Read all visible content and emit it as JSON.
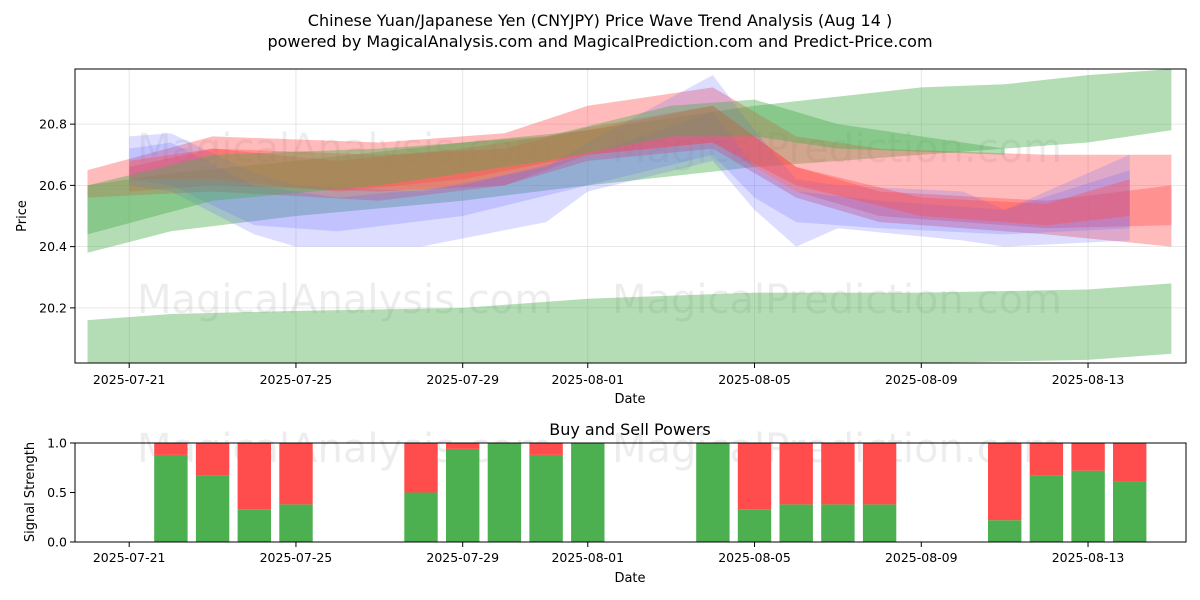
{
  "title_line1": "Chinese Yuan/Japanese Yen (CNYJPY) Price Wave Trend Analysis (Aug 14 )",
  "title_line2": "powered by MagicalAnalysis.com and MagicalPrediction.com and Predict-Price.com",
  "watermarks": [
    "MagicalAnalysis.com",
    "MagicalPrediction.com"
  ],
  "colors": {
    "green": "#4caf50",
    "red": "#ff4c4c",
    "blue": "#6666ff",
    "grid": "#e0e0e0"
  },
  "chart_data": [
    {
      "type": "area",
      "title": "",
      "xlabel": "Date",
      "ylabel": "Price",
      "x_ticks": [
        "2025-07-21",
        "2025-07-25",
        "2025-07-29",
        "2025-08-01",
        "2025-08-05",
        "2025-08-09",
        "2025-08-13"
      ],
      "y_ticks": [
        "20.2",
        "20.4",
        "20.6",
        "20.8"
      ],
      "xlim": [
        "2025-07-20",
        "2025-08-15"
      ],
      "ylim": [
        20.02,
        20.98
      ],
      "grid": true,
      "bands": [
        {
          "color": "green",
          "x": [
            "2025-07-20",
            "2025-07-22",
            "2025-07-25",
            "2025-07-29",
            "2025-08-01",
            "2025-08-05",
            "2025-08-09",
            "2025-08-13",
            "2025-08-15"
          ],
          "upper": [
            20.16,
            20.18,
            20.19,
            20.2,
            20.23,
            20.25,
            20.25,
            20.26,
            20.28
          ],
          "lower": [
            20.0,
            20.0,
            20.0,
            20.0,
            20.0,
            20.01,
            20.02,
            20.03,
            20.05
          ]
        },
        {
          "color": "green",
          "x": [
            "2025-07-20",
            "2025-07-22",
            "2025-07-25",
            "2025-07-29",
            "2025-08-01",
            "2025-08-05",
            "2025-08-09",
            "2025-08-11",
            "2025-08-13",
            "2025-08-15"
          ],
          "upper": [
            20.6,
            20.64,
            20.68,
            20.74,
            20.78,
            20.86,
            20.92,
            20.93,
            20.96,
            20.99
          ],
          "lower": [
            20.38,
            20.45,
            20.5,
            20.55,
            20.6,
            20.66,
            20.7,
            20.72,
            20.74,
            20.78
          ]
        },
        {
          "color": "red",
          "x": [
            "2025-07-20",
            "2025-07-23",
            "2025-07-27",
            "2025-07-30",
            "2025-08-01",
            "2025-08-04",
            "2025-08-06",
            "2025-08-08",
            "2025-08-12",
            "2025-08-15"
          ],
          "upper": [
            20.65,
            20.76,
            20.74,
            20.77,
            20.86,
            20.92,
            20.76,
            20.72,
            20.7,
            20.7
          ],
          "lower": [
            20.56,
            20.58,
            20.55,
            20.6,
            20.7,
            20.74,
            20.58,
            20.5,
            20.46,
            20.47
          ]
        },
        {
          "color": "red",
          "x": [
            "2025-07-21",
            "2025-07-23",
            "2025-07-27",
            "2025-07-30",
            "2025-08-01",
            "2025-08-04",
            "2025-08-06",
            "2025-08-08",
            "2025-08-12",
            "2025-08-15"
          ],
          "upper": [
            20.66,
            20.72,
            20.7,
            20.72,
            20.79,
            20.86,
            20.66,
            20.58,
            20.55,
            20.6
          ],
          "lower": [
            20.58,
            20.6,
            20.58,
            20.6,
            20.68,
            20.72,
            20.56,
            20.48,
            20.44,
            20.4
          ]
        },
        {
          "color": "blue",
          "x": [
            "2025-07-21",
            "2025-07-22",
            "2025-07-24",
            "2025-07-25",
            "2025-07-28",
            "2025-07-31",
            "2025-08-01",
            "2025-08-04",
            "2025-08-05",
            "2025-08-06",
            "2025-08-07",
            "2025-08-10",
            "2025-08-11",
            "2025-08-14"
          ],
          "upper": [
            20.76,
            20.77,
            20.64,
            20.6,
            20.58,
            20.66,
            20.74,
            20.96,
            20.78,
            20.62,
            20.6,
            20.58,
            20.52,
            20.7
          ],
          "lower": [
            20.6,
            20.58,
            20.44,
            20.4,
            20.4,
            20.48,
            20.58,
            20.68,
            20.52,
            20.4,
            20.46,
            20.42,
            20.4,
            20.42
          ]
        },
        {
          "color": "blue",
          "x": [
            "2025-07-21",
            "2025-07-22",
            "2025-07-24",
            "2025-07-26",
            "2025-07-29",
            "2025-08-01",
            "2025-08-04",
            "2025-08-05",
            "2025-08-06",
            "2025-08-08",
            "2025-08-11",
            "2025-08-14"
          ],
          "upper": [
            20.72,
            20.74,
            20.6,
            20.56,
            20.6,
            20.7,
            20.84,
            20.66,
            20.58,
            20.55,
            20.52,
            20.65
          ],
          "lower": [
            20.62,
            20.6,
            20.47,
            20.45,
            20.5,
            20.6,
            20.7,
            20.56,
            20.48,
            20.46,
            20.44,
            20.46
          ]
        },
        {
          "color": "red",
          "x": [
            "2025-07-21",
            "2025-07-23",
            "2025-07-26",
            "2025-07-29",
            "2025-08-01",
            "2025-08-04",
            "2025-08-06",
            "2025-08-09",
            "2025-08-12",
            "2025-08-14"
          ],
          "upper": [
            20.68,
            20.72,
            20.68,
            20.72,
            20.78,
            20.86,
            20.66,
            20.56,
            20.54,
            20.62
          ],
          "lower": [
            20.62,
            20.62,
            20.58,
            20.62,
            20.7,
            20.74,
            20.6,
            20.5,
            20.47,
            20.5
          ]
        },
        {
          "color": "green",
          "x": [
            "2025-07-20",
            "2025-07-23",
            "2025-07-27",
            "2025-07-31",
            "2025-08-03",
            "2025-08-05",
            "2025-08-07",
            "2025-08-11"
          ],
          "upper": [
            20.6,
            20.7,
            20.72,
            20.76,
            20.86,
            20.88,
            20.8,
            20.72
          ],
          "lower": [
            20.44,
            20.55,
            20.6,
            20.68,
            20.76,
            20.76,
            20.72,
            20.7
          ]
        }
      ]
    },
    {
      "type": "bar",
      "title": "Buy and Sell Powers",
      "xlabel": "Date",
      "ylabel": "Signal Strength",
      "x_ticks": [
        "2025-07-21",
        "2025-07-25",
        "2025-07-29",
        "2025-08-01",
        "2025-08-05",
        "2025-08-09",
        "2025-08-13"
      ],
      "y_ticks": [
        "0.0",
        "0.5",
        "1.0"
      ],
      "xlim": [
        "2025-07-20",
        "2025-08-15"
      ],
      "ylim": [
        0,
        1
      ],
      "series": [
        {
          "name": "Buy",
          "color": "green"
        },
        {
          "name": "Sell",
          "color": "red"
        }
      ],
      "categories": [
        "2025-07-22",
        "2025-07-23",
        "2025-07-24",
        "2025-07-25",
        "2025-07-28",
        "2025-07-29",
        "2025-07-30",
        "2025-07-31",
        "2025-08-01",
        "2025-08-04",
        "2025-08-05",
        "2025-08-06",
        "2025-08-07",
        "2025-08-08",
        "2025-08-11",
        "2025-08-12",
        "2025-08-13",
        "2025-08-14"
      ],
      "buy": [
        0.88,
        0.67,
        0.33,
        0.38,
        0.5,
        0.94,
        1.0,
        0.88,
        1.0,
        1.0,
        0.33,
        0.38,
        0.38,
        0.38,
        0.22,
        0.67,
        0.72,
        0.61
      ],
      "sell": [
        0.12,
        0.33,
        0.67,
        0.62,
        0.5,
        0.06,
        0.0,
        0.12,
        0.0,
        0.0,
        0.67,
        0.62,
        0.62,
        0.62,
        0.78,
        0.33,
        0.28,
        0.39
      ]
    }
  ]
}
